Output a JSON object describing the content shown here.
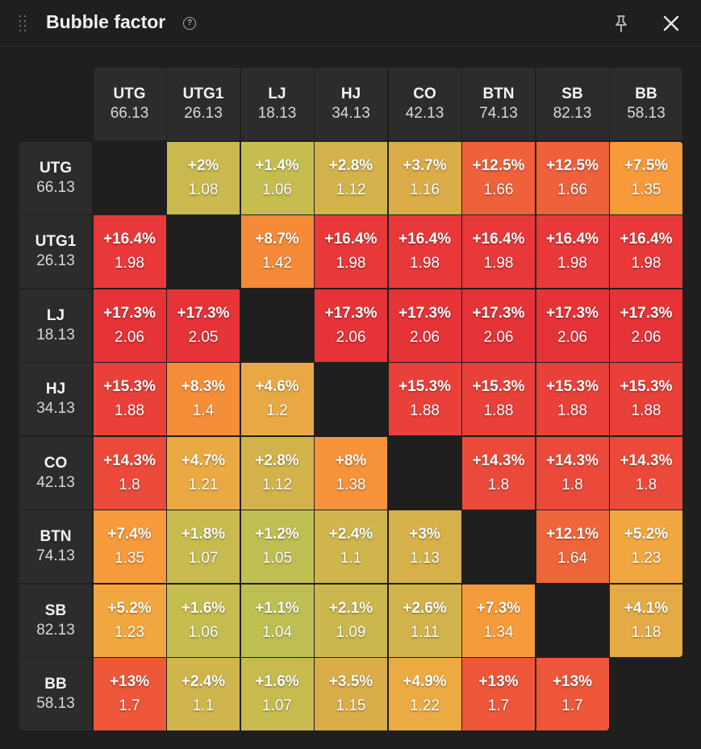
{
  "window": {
    "title": "Bubble factor",
    "icons": {
      "drag": "drag-handle-icon",
      "help": "help-icon",
      "pin": "pin-icon",
      "close": "close-icon"
    }
  },
  "players": [
    {
      "name": "UTG",
      "stack": "66.13"
    },
    {
      "name": "UTG1",
      "stack": "26.13"
    },
    {
      "name": "LJ",
      "stack": "18.13"
    },
    {
      "name": "HJ",
      "stack": "34.13"
    },
    {
      "name": "CO",
      "stack": "42.13"
    },
    {
      "name": "BTN",
      "stack": "74.13"
    },
    {
      "name": "SB",
      "stack": "82.13"
    },
    {
      "name": "BB",
      "stack": "58.13"
    }
  ],
  "matrix": [
    [
      null,
      {
        "pct": "+2%",
        "bf": "1.08",
        "color": "#c9b94e"
      },
      {
        "pct": "+1.4%",
        "bf": "1.06",
        "color": "#c6bd50"
      },
      {
        "pct": "+2.8%",
        "bf": "1.12",
        "color": "#d3b24b"
      },
      {
        "pct": "+3.7%",
        "bf": "1.16",
        "color": "#dbab47"
      },
      {
        "pct": "+12.5%",
        "bf": "1.66",
        "color": "#ee613a"
      },
      {
        "pct": "+12.5%",
        "bf": "1.66",
        "color": "#ee613a"
      },
      {
        "pct": "+7.5%",
        "bf": "1.35",
        "color": "#f69a3c"
      }
    ],
    [
      {
        "pct": "+16.4%",
        "bf": "1.98",
        "color": "#e8383a"
      },
      null,
      {
        "pct": "+8.7%",
        "bf": "1.42",
        "color": "#f48a38"
      },
      {
        "pct": "+16.4%",
        "bf": "1.98",
        "color": "#e8383a"
      },
      {
        "pct": "+16.4%",
        "bf": "1.98",
        "color": "#e8383a"
      },
      {
        "pct": "+16.4%",
        "bf": "1.98",
        "color": "#e8383a"
      },
      {
        "pct": "+16.4%",
        "bf": "1.98",
        "color": "#e8383a"
      },
      {
        "pct": "+16.4%",
        "bf": "1.98",
        "color": "#e8383a"
      }
    ],
    [
      {
        "pct": "+17.3%",
        "bf": "2.06",
        "color": "#e63338"
      },
      {
        "pct": "+17.3%",
        "bf": "2.05",
        "color": "#e63338"
      },
      null,
      {
        "pct": "+17.3%",
        "bf": "2.06",
        "color": "#e63338"
      },
      {
        "pct": "+17.3%",
        "bf": "2.06",
        "color": "#e63338"
      },
      {
        "pct": "+17.3%",
        "bf": "2.06",
        "color": "#e63338"
      },
      {
        "pct": "+17.3%",
        "bf": "2.06",
        "color": "#e63338"
      },
      {
        "pct": "+17.3%",
        "bf": "2.06",
        "color": "#e63338"
      }
    ],
    [
      {
        "pct": "+15.3%",
        "bf": "1.88",
        "color": "#e9403a"
      },
      {
        "pct": "+8.3%",
        "bf": "1.4",
        "color": "#f58e39"
      },
      {
        "pct": "+4.6%",
        "bf": "1.2",
        "color": "#e8a944"
      },
      null,
      {
        "pct": "+15.3%",
        "bf": "1.88",
        "color": "#e9403a"
      },
      {
        "pct": "+15.3%",
        "bf": "1.88",
        "color": "#e9403a"
      },
      {
        "pct": "+15.3%",
        "bf": "1.88",
        "color": "#e9403a"
      },
      {
        "pct": "+15.3%",
        "bf": "1.88",
        "color": "#e9403a"
      }
    ],
    [
      {
        "pct": "+14.3%",
        "bf": "1.8",
        "color": "#eb4a3a"
      },
      {
        "pct": "+4.7%",
        "bf": "1.21",
        "color": "#eaa943"
      },
      {
        "pct": "+2.8%",
        "bf": "1.12",
        "color": "#d3b24b"
      },
      {
        "pct": "+8%",
        "bf": "1.38",
        "color": "#f5923a"
      },
      null,
      {
        "pct": "+14.3%",
        "bf": "1.8",
        "color": "#eb4a3a"
      },
      {
        "pct": "+14.3%",
        "bf": "1.8",
        "color": "#eb4a3a"
      },
      {
        "pct": "+14.3%",
        "bf": "1.8",
        "color": "#eb4a3a"
      }
    ],
    [
      {
        "pct": "+7.4%",
        "bf": "1.35",
        "color": "#f69a3c"
      },
      {
        "pct": "+1.8%",
        "bf": "1.07",
        "color": "#c7bb4f"
      },
      {
        "pct": "+1.2%",
        "bf": "1.05",
        "color": "#bfbe52"
      },
      {
        "pct": "+2.4%",
        "bf": "1.1",
        "color": "#cfb54c"
      },
      {
        "pct": "+3%",
        "bf": "1.13",
        "color": "#d6b049"
      },
      null,
      {
        "pct": "+12.1%",
        "bf": "1.64",
        "color": "#ef653a"
      },
      {
        "pct": "+5.2%",
        "bf": "1.23",
        "color": "#f0a740"
      }
    ],
    [
      {
        "pct": "+5.2%",
        "bf": "1.23",
        "color": "#f0a740"
      },
      {
        "pct": "+1.6%",
        "bf": "1.06",
        "color": "#c6bd50"
      },
      {
        "pct": "+1.1%",
        "bf": "1.04",
        "color": "#bebf53"
      },
      {
        "pct": "+2.1%",
        "bf": "1.09",
        "color": "#cbb74d"
      },
      {
        "pct": "+2.6%",
        "bf": "1.11",
        "color": "#d1b34b"
      },
      {
        "pct": "+7.3%",
        "bf": "1.34",
        "color": "#f69b3c"
      },
      null,
      {
        "pct": "+4.1%",
        "bf": "1.18",
        "color": "#e4aa45"
      }
    ],
    [
      {
        "pct": "+13%",
        "bf": "1.7",
        "color": "#ee573a"
      },
      {
        "pct": "+2.4%",
        "bf": "1.1",
        "color": "#cfb54c"
      },
      {
        "pct": "+1.6%",
        "bf": "1.07",
        "color": "#c7bb4f"
      },
      {
        "pct": "+3.5%",
        "bf": "1.15",
        "color": "#d9ad48"
      },
      {
        "pct": "+4.9%",
        "bf": "1.22",
        "color": "#ecaa42"
      },
      {
        "pct": "+13%",
        "bf": "1.7",
        "color": "#ee573a"
      },
      {
        "pct": "+13%",
        "bf": "1.7",
        "color": "#ee573a"
      },
      null
    ]
  ]
}
